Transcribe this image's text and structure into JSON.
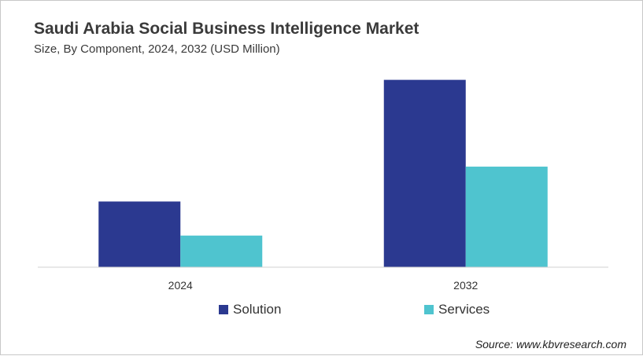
{
  "header": {
    "title": "Saudi Arabia Social Business Intelligence Market",
    "subtitle": "Size, By Component, 2024, 2032 (USD Million)"
  },
  "footer": {
    "source": "Source: www.kbvresearch.com"
  },
  "chart_data": {
    "type": "bar",
    "title": "Saudi Arabia Social Business Intelligence Market",
    "subtitle": "Size, By Component, 2024, 2032 (USD Million)",
    "xlabel": "",
    "ylabel": "",
    "categories": [
      "2024",
      "2032"
    ],
    "series": [
      {
        "name": "Solution",
        "color": "#2b3990",
        "values": [
          8.1,
          23.1
        ]
      },
      {
        "name": "Services",
        "color": "#4fc4cf",
        "values": [
          3.9,
          12.4
        ]
      }
    ],
    "ylim": [
      0,
      25
    ],
    "grid": false,
    "legend": "bottom-center",
    "value_labels_shown": false
  }
}
